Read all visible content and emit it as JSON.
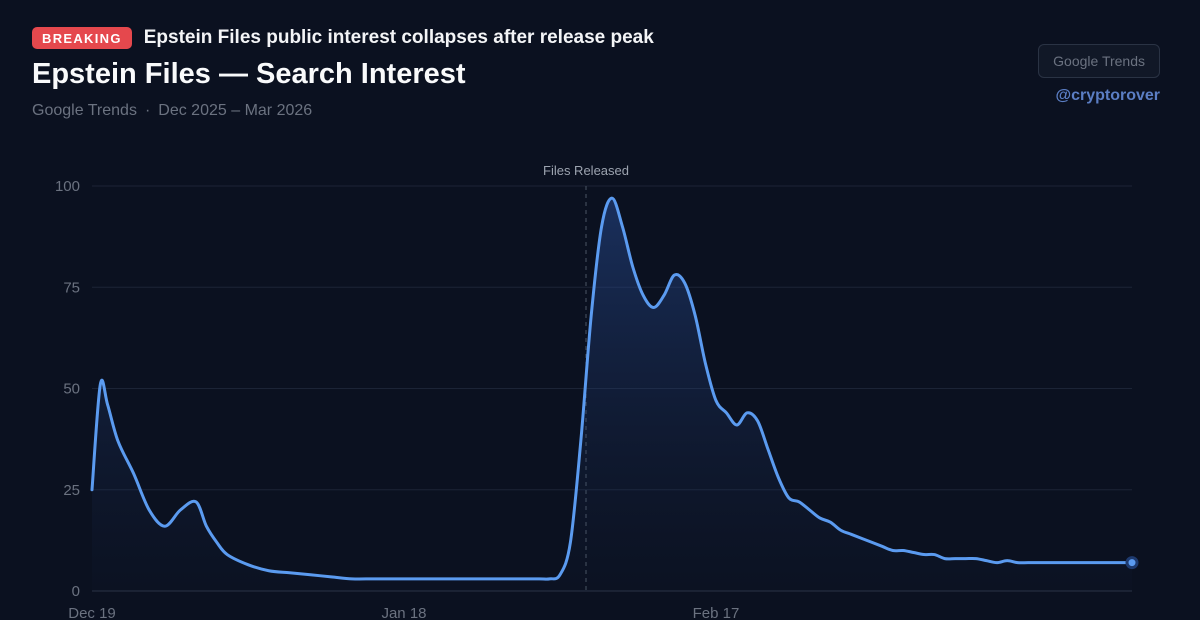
{
  "header": {
    "badge": "BREAKING",
    "headline": "Epstein Files public interest collapses after release peak",
    "subtitle_source": "Google Trends",
    "subtitle_sep": "·",
    "subtitle_range": "Dec 2025 – Mar 2026",
    "brand_button": "Google Trends",
    "handle": "@cryptorover"
  },
  "colors": {
    "background": "#0b1120",
    "line": "#5b9bf0",
    "badge": "#e5484d"
  },
  "chart_data": {
    "type": "area",
    "title": "Epstein Files — Search Interest",
    "xlabel": "",
    "ylabel": "",
    "ylim": [
      0,
      100
    ],
    "xlim": [
      0,
      100
    ],
    "grid": true,
    "yticks": [
      0,
      25,
      50,
      75,
      100
    ],
    "xticks": [
      {
        "x": 0,
        "label": "Dec 19"
      },
      {
        "x": 30,
        "label": "Jan 18"
      },
      {
        "x": 60,
        "label": "Feb 17"
      }
    ],
    "annotation": {
      "x": 47.5,
      "label": "Files Released"
    },
    "series": [
      {
        "name": "Search Interest",
        "x": [
          0,
          0.8,
          1.5,
          2.5,
          4,
          5.5,
          7,
          8.5,
          10,
          11,
          12,
          13,
          15,
          17,
          19,
          21,
          23,
          25,
          27,
          29,
          31,
          32,
          33,
          35,
          37,
          39,
          41,
          43,
          44,
          45,
          46,
          47,
          48,
          49,
          50,
          51,
          52,
          53,
          54,
          55,
          56,
          57,
          58,
          59,
          60,
          61,
          62,
          63,
          64,
          65,
          66,
          67,
          68,
          69,
          70,
          71,
          72,
          73,
          74,
          75,
          76,
          77,
          78,
          79,
          80,
          81,
          82,
          83,
          84,
          85,
          86,
          87,
          88,
          89,
          90,
          91,
          92,
          93,
          94,
          95,
          96,
          97,
          98,
          99,
          100
        ],
        "values": [
          25,
          51,
          46,
          37,
          29,
          20,
          16,
          20,
          22,
          16,
          12,
          9,
          6.5,
          5,
          4.5,
          4,
          3.5,
          3,
          3,
          3,
          3,
          3,
          3,
          3,
          3,
          3,
          3,
          3,
          3,
          4,
          12,
          37,
          68,
          90,
          97,
          90,
          80,
          73,
          70,
          73,
          78,
          76,
          68,
          56,
          47,
          44,
          41,
          44,
          42,
          35,
          28,
          23,
          22,
          20,
          18,
          17,
          15,
          14,
          13,
          12,
          11,
          10,
          10,
          9.5,
          9,
          9,
          8,
          8,
          8,
          8,
          7.5,
          7,
          7.5,
          7,
          7,
          7,
          7,
          7,
          7,
          7,
          7,
          7,
          7,
          7,
          7
        ]
      }
    ]
  }
}
